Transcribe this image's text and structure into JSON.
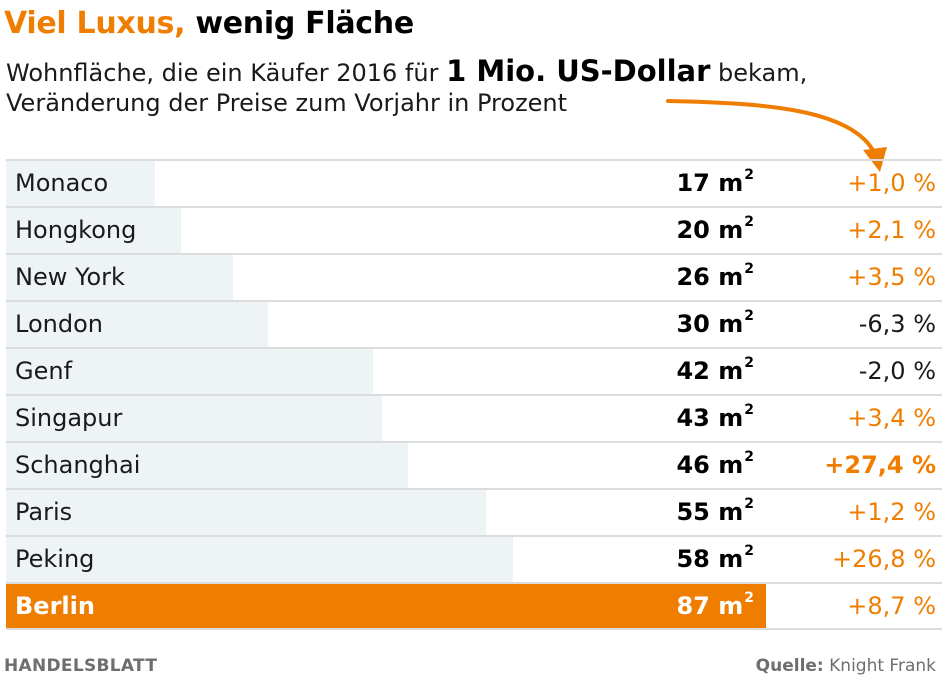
{
  "header": {
    "title_accent": "Viel Luxus,",
    "title_rest": "wenig Fläche",
    "subtitle_line1_pre": "Wohnfläche, die ein Käufer 2016 für",
    "subtitle_line1_emphasis": "1 Mio. US-Dollar",
    "subtitle_line1_post": "bekam,",
    "subtitle_line2": "Veränderung der Preise zum Vorjahr in Prozent"
  },
  "colors": {
    "accent": "#ef7d00",
    "bar_light": "#eef3f6",
    "divider": "#dcdcdc",
    "footer_text": "#6e6e6e"
  },
  "icons": {
    "arrow": "curved-arrow-icon"
  },
  "chart_data": {
    "type": "bar",
    "orientation": "horizontal",
    "categories": [
      "Monaco",
      "Hongkong",
      "New York",
      "London",
      "Genf",
      "Singapur",
      "Schanghai",
      "Paris",
      "Peking",
      "Berlin"
    ],
    "values": [
      17,
      20,
      26,
      30,
      42,
      43,
      46,
      55,
      58,
      87
    ],
    "value_labels": [
      "17 m",
      "20 m",
      "26 m",
      "30 m",
      "42 m",
      "43 m",
      "46 m",
      "55 m",
      "58 m",
      "87 m"
    ],
    "unit_superscript": "2",
    "price_change_labels": [
      "+1,0 %",
      "+2,1 %",
      "+3,5 %",
      "-6,3 %",
      "-2,0 %",
      "+3,4 %",
      "+27,4 %",
      "+1,2 %",
      "+26,8 %",
      "+8,7 %"
    ],
    "price_change_values": [
      1.0,
      2.1,
      3.5,
      -6.3,
      -2.0,
      3.4,
      27.4,
      1.2,
      26.8,
      8.7
    ],
    "bold_price_change_indices": [
      6
    ],
    "highlight_index": 9,
    "xlim": [
      0,
      87
    ]
  },
  "footer": {
    "brand": "HANDELSBLATT",
    "source_label": "Quelle:",
    "source_value": "Knight Frank"
  }
}
